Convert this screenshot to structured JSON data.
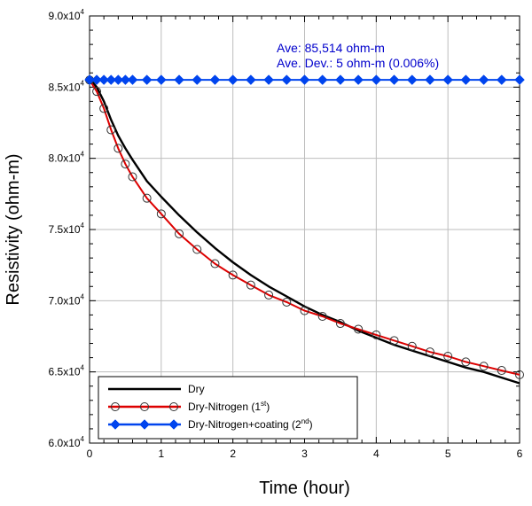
{
  "chart_data": {
    "type": "line",
    "title": "",
    "xlabel": "Time (hour)",
    "ylabel": "Resistivity (ohm-m)",
    "xlim": [
      0,
      6
    ],
    "ylim": [
      60000,
      90000
    ],
    "x_ticks": [
      0,
      1,
      2,
      3,
      4,
      5,
      6
    ],
    "x_tick_labels": [
      "0",
      "1",
      "2",
      "3",
      "4",
      "5",
      "6"
    ],
    "y_ticks": [
      60000,
      65000,
      70000,
      75000,
      80000,
      85000,
      90000
    ],
    "y_tick_labels": [
      {
        "mantissa": "6.0x10",
        "exp": "4"
      },
      {
        "mantissa": "6.5x10",
        "exp": "4"
      },
      {
        "mantissa": "7.0x10",
        "exp": "4"
      },
      {
        "mantissa": "7.5x10",
        "exp": "4"
      },
      {
        "mantissa": "8.0x10",
        "exp": "4"
      },
      {
        "mantissa": "8.5x10",
        "exp": "4"
      },
      {
        "mantissa": "9.0x10",
        "exp": "4"
      }
    ],
    "grid": true,
    "legend_position": "bottom-left",
    "annotations": [
      {
        "text": "Ave: 85,514 ohm-m",
        "color": "#0000cc"
      },
      {
        "text": "Ave. Dev.: 5 ohm-m (0.006%)",
        "color": "#0000cc"
      }
    ],
    "series": [
      {
        "name": "Dry",
        "name_sup": "",
        "name_suffix": "",
        "color": "#000000",
        "marker": "none",
        "x": [
          0,
          0.1,
          0.2,
          0.3,
          0.4,
          0.5,
          0.6,
          0.8,
          1.0,
          1.25,
          1.5,
          1.75,
          2.0,
          2.25,
          2.5,
          2.75,
          3.0,
          3.25,
          3.5,
          3.75,
          4.0,
          4.25,
          4.5,
          4.75,
          5.0,
          5.25,
          5.5,
          5.75,
          6.0
        ],
        "y": [
          85600,
          85000,
          84000,
          82700,
          81600,
          80700,
          79900,
          78400,
          77300,
          76000,
          74800,
          73700,
          72700,
          71800,
          71000,
          70300,
          69600,
          69000,
          68500,
          67900,
          67400,
          66900,
          66500,
          66100,
          65700,
          65300,
          65000,
          64600,
          64200
        ]
      },
      {
        "name": "Dry-Nitrogen (1",
        "name_sup": "st",
        "name_suffix": ")",
        "color": "#dd0000",
        "marker": "open-circle",
        "x": [
          0,
          0.1,
          0.2,
          0.3,
          0.4,
          0.5,
          0.6,
          0.8,
          1.0,
          1.25,
          1.5,
          1.75,
          2.0,
          2.25,
          2.5,
          2.75,
          3.0,
          3.25,
          3.5,
          3.75,
          4.0,
          4.25,
          4.5,
          4.75,
          5.0,
          5.25,
          5.5,
          5.75,
          6.0
        ],
        "y": [
          85500,
          84700,
          83500,
          82000,
          80700,
          79600,
          78700,
          77200,
          76100,
          74700,
          73600,
          72600,
          71800,
          71100,
          70400,
          69900,
          69300,
          68900,
          68400,
          68000,
          67600,
          67200,
          66800,
          66400,
          66100,
          65700,
          65400,
          65100,
          64800
        ]
      },
      {
        "name": "Dry-Nitrogen+coating (2",
        "name_sup": "nd",
        "name_suffix": ")",
        "color": "#0044ee",
        "marker": "filled-diamond",
        "x": [
          0,
          0.1,
          0.2,
          0.3,
          0.4,
          0.5,
          0.6,
          0.8,
          1.0,
          1.25,
          1.5,
          1.75,
          2.0,
          2.25,
          2.5,
          2.75,
          3.0,
          3.25,
          3.5,
          3.75,
          4.0,
          4.25,
          4.5,
          4.75,
          5.0,
          5.25,
          5.5,
          5.75,
          6.0
        ],
        "y": [
          85514,
          85514,
          85514,
          85514,
          85514,
          85514,
          85514,
          85514,
          85514,
          85514,
          85514,
          85514,
          85514,
          85514,
          85514,
          85514,
          85514,
          85514,
          85514,
          85514,
          85514,
          85514,
          85514,
          85514,
          85514,
          85514,
          85514,
          85514,
          85514
        ]
      }
    ]
  }
}
